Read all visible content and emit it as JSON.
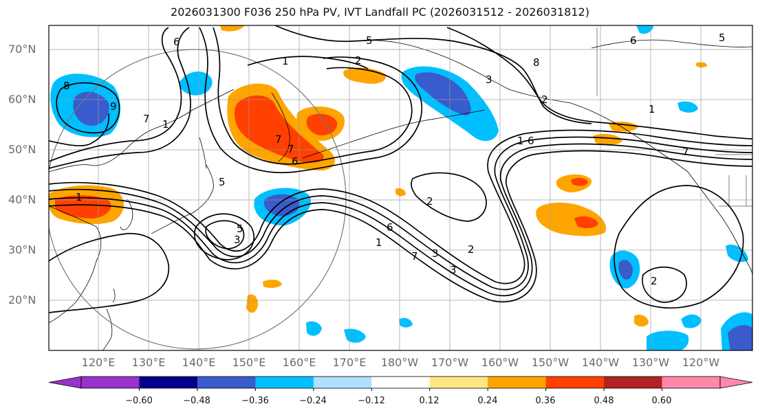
{
  "title": "2026031300 F036 250 hPa PV, IVT Landfall PC (2026031512 - 2026031812)",
  "map": {
    "lat_labels": [
      "70°N",
      "60°N",
      "50°N",
      "40°N",
      "30°N",
      "20°N"
    ],
    "lon_labels": [
      "120°E",
      "130°E",
      "140°E",
      "150°E",
      "160°E",
      "170°E",
      "180°W",
      "170°W",
      "160°W",
      "150°W",
      "140°W",
      "130°W",
      "120°W"
    ],
    "contour_labels": [
      "1",
      "2",
      "3",
      "5",
      "6",
      "7",
      "8",
      "9",
      "1",
      "2",
      "3",
      "5",
      "6",
      "7",
      "8",
      "1",
      "2",
      "3",
      "5",
      "6",
      "7",
      "1",
      "2",
      "3",
      "5",
      "6",
      "7",
      "1",
      "6",
      "2",
      "7",
      "1"
    ]
  },
  "colorbar": {
    "tick_labels": [
      "−0.60",
      "−0.48",
      "−0.36",
      "−0.24",
      "−0.12",
      "0.12",
      "0.24",
      "0.36",
      "0.48",
      "0.60"
    ],
    "colors": [
      "#9932cc",
      "#00008b",
      "#3a5bcc",
      "#00bfff",
      "#b0e0ff",
      "#ffffff",
      "#ffe680",
      "#ffa500",
      "#ff4000",
      "#b22222",
      "#ff88aa"
    ],
    "extend": "both"
  }
}
